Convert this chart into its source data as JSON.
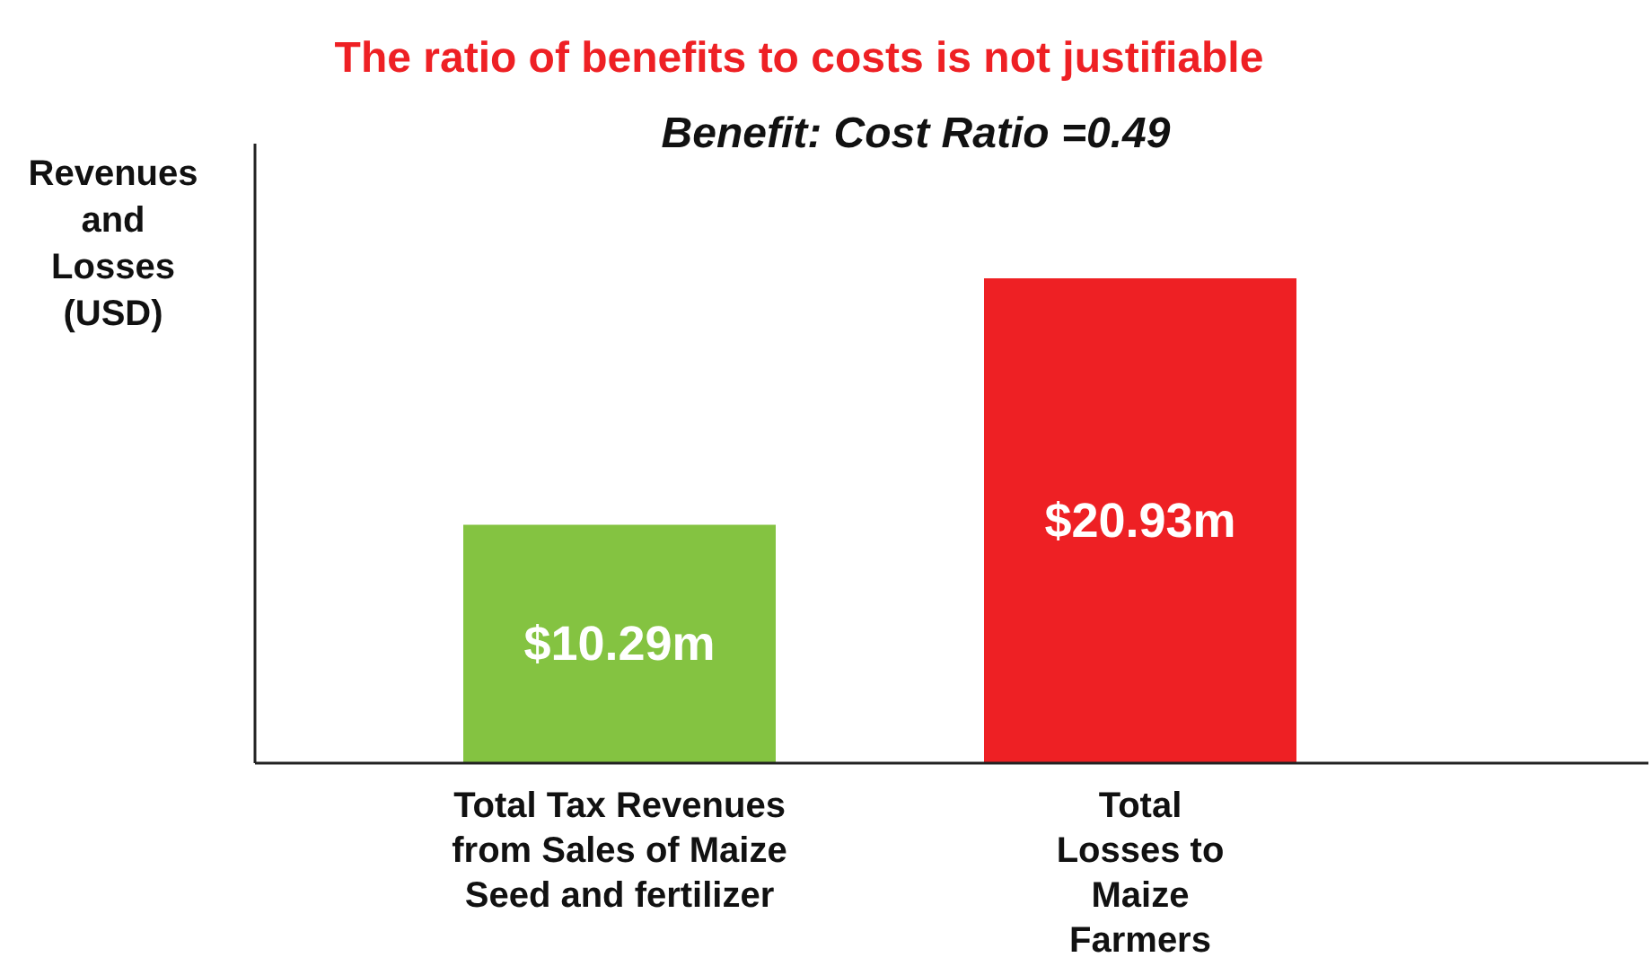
{
  "chart_data": {
    "type": "bar",
    "title": "The ratio of benefits to costs is not justifiable",
    "subtitle": "Benefit: Cost Ratio =0.49",
    "ylabel": "Revenues and Losses (USD)",
    "categories": [
      "Total Tax Revenues from Sales of Maize Seed and fertilizer",
      "Total Losses to Maize Farmers"
    ],
    "values": [
      10.29,
      20.93
    ],
    "colors": [
      "#84c341",
      "#ee2024"
    ],
    "value_labels": [
      "$10.29m",
      "$20.93m"
    ],
    "tick_labels": "x"
  }
}
